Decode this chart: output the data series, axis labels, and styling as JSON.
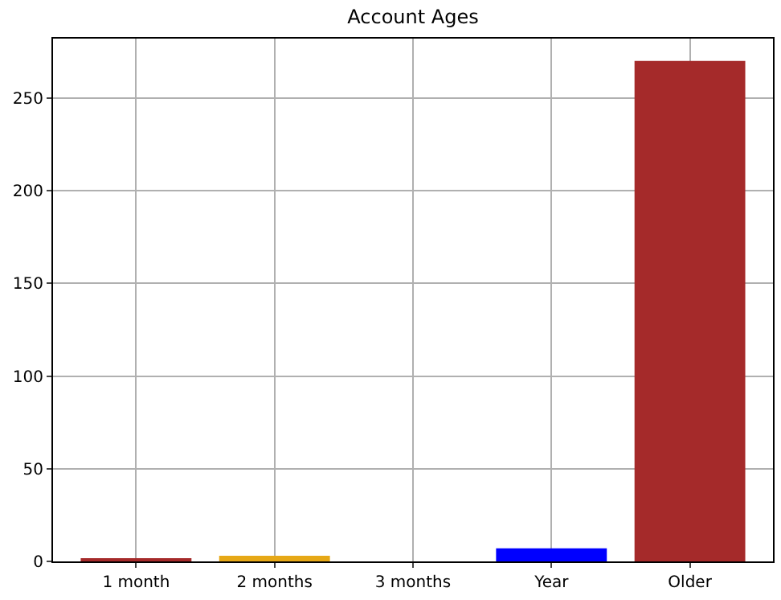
{
  "chart_data": {
    "type": "bar",
    "title": "Account Ages",
    "categories": [
      "1 month",
      "2 months",
      "3 months",
      "Year",
      "Older"
    ],
    "values": [
      1,
      3,
      0,
      7,
      270
    ],
    "colors": [
      "#a52a2a",
      "#e6a817",
      "#a52a2a",
      "#0000ff",
      "#a52a2a"
    ],
    "ylim": [
      0,
      282
    ],
    "yticks": [
      0,
      50,
      100,
      150,
      200,
      250
    ],
    "grid": true
  }
}
